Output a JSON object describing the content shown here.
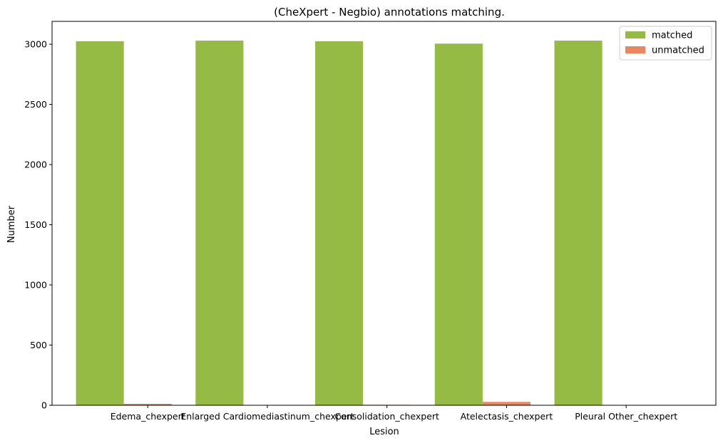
{
  "chart_data": {
    "type": "bar",
    "title": "(CheXpert - Negbio) annotations matching.",
    "xlabel": "Lesion",
    "ylabel": "Number",
    "categories": [
      "Edema_chexpert",
      "Enlarged Cardiomediastinum_chexpert",
      "Consolidation_chexpert",
      "Atelectasis_chexpert",
      "Pleural Other_chexpert"
    ],
    "series": [
      {
        "name": "matched",
        "color": "#95bb45",
        "values": [
          3025,
          3030,
          3025,
          3005,
          3030
        ]
      },
      {
        "name": "unmatched",
        "color": "#ec8660",
        "values": [
          12,
          3,
          4,
          28,
          3
        ]
      }
    ],
    "ylim": [
      0,
      3190
    ],
    "yticks": [
      0,
      500,
      1000,
      1500,
      2000,
      2500,
      3000
    ],
    "grid": false,
    "legend_position": "top-right"
  }
}
